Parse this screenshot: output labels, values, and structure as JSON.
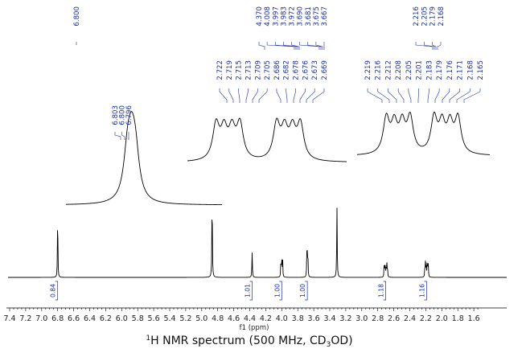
{
  "chart_data": {
    "type": "line",
    "title": "¹H NMR spectrum (500 MHz, CD₃OD)",
    "title_parts": {
      "nucleus_mass": "1",
      "main": "H NMR spectrum (500 MHz, CD",
      "sub": "3",
      "tail": "OD)"
    },
    "xlabel": "f1 (ppm)",
    "xlim": [
      7.4,
      1.6
    ],
    "x_ticks": [
      "7.4",
      "7.2",
      "7.0",
      "6.8",
      "6.6",
      "6.4",
      "6.2",
      "6.0",
      "5.8",
      "5.6",
      "5.4",
      "5.2",
      "5.0",
      "4.8",
      "4.6",
      "4.4",
      "4.2",
      "4.0",
      "3.8",
      "3.6",
      "3.4",
      "3.2",
      "3.0",
      "2.8",
      "2.6",
      "2.4",
      "2.2",
      "2.0",
      "1.8",
      "1.6"
    ],
    "line_color": "#000000",
    "label_color": "#1a2f9c",
    "signals": [
      {
        "shift": 6.8,
        "height": 0.3,
        "lines": [
          6.803,
          6.8,
          6.796
        ],
        "integral": "0.84"
      },
      {
        "shift": 4.87,
        "height": 0.95,
        "lines": [
          4.87
        ],
        "integral": null
      },
      {
        "shift": 4.37,
        "height": 0.28,
        "lines": [
          4.37
        ],
        "integral": "1.01"
      },
      {
        "shift": 4.0,
        "height": 0.26,
        "lines": [
          4.008,
          3.997,
          3.983,
          3.972
        ],
        "integral": "1.00"
      },
      {
        "shift": 3.68,
        "height": 0.29,
        "lines": [
          3.69,
          3.681,
          3.675,
          3.667
        ],
        "integral": "1.00"
      },
      {
        "shift": 3.31,
        "height": 0.8,
        "lines": [
          3.31
        ],
        "integral": null
      },
      {
        "shift": 2.7,
        "height": 0.14,
        "lines": [
          2.722,
          2.719,
          2.715,
          2.713,
          2.709,
          2.705,
          2.686,
          2.682,
          2.678,
          2.676,
          2.673,
          2.669
        ],
        "integral": "1.18"
      },
      {
        "shift": 2.19,
        "height": 0.16,
        "lines": [
          2.219,
          2.216,
          2.212,
          2.208,
          2.205,
          2.201,
          2.183,
          2.179,
          2.176,
          2.171,
          2.168,
          2.165
        ],
        "integral": "1.16"
      }
    ],
    "top_peak_labels": [
      {
        "group": "a",
        "values": [
          "6.800"
        ]
      },
      {
        "group": "b",
        "values": [
          "4.370",
          "4.008",
          "3.997",
          "3.983",
          "3.972",
          "3.690",
          "3.681",
          "3.675",
          "3.667"
        ]
      },
      {
        "group": "c",
        "values": [
          "2.216",
          "2.205",
          "2.179",
          "2.168"
        ]
      }
    ],
    "inset_labels": [
      {
        "inset": "a",
        "values": [
          "6.803",
          "6.800",
          "6.796"
        ]
      },
      {
        "inset": "b",
        "values": [
          "2.722",
          "2.719",
          "2.715",
          "2.713",
          "2.709",
          "2.705",
          "2.686",
          "2.682",
          "2.678",
          "2.676",
          "2.673",
          "2.669"
        ]
      },
      {
        "inset": "c",
        "values": [
          "2.219",
          "2.216",
          "2.212",
          "2.208",
          "2.205",
          "2.201",
          "2.183",
          "2.179",
          "2.176",
          "2.171",
          "2.168",
          "2.165"
        ]
      }
    ],
    "integrals": [
      {
        "shift": 6.8,
        "value": "0.84"
      },
      {
        "shift": 4.37,
        "value": "1.01"
      },
      {
        "shift": 4.0,
        "value": "1.00"
      },
      {
        "shift": 3.68,
        "value": "1.00"
      },
      {
        "shift": 2.7,
        "value": "1.18"
      },
      {
        "shift": 2.19,
        "value": "1.16"
      }
    ],
    "grid": false
  }
}
